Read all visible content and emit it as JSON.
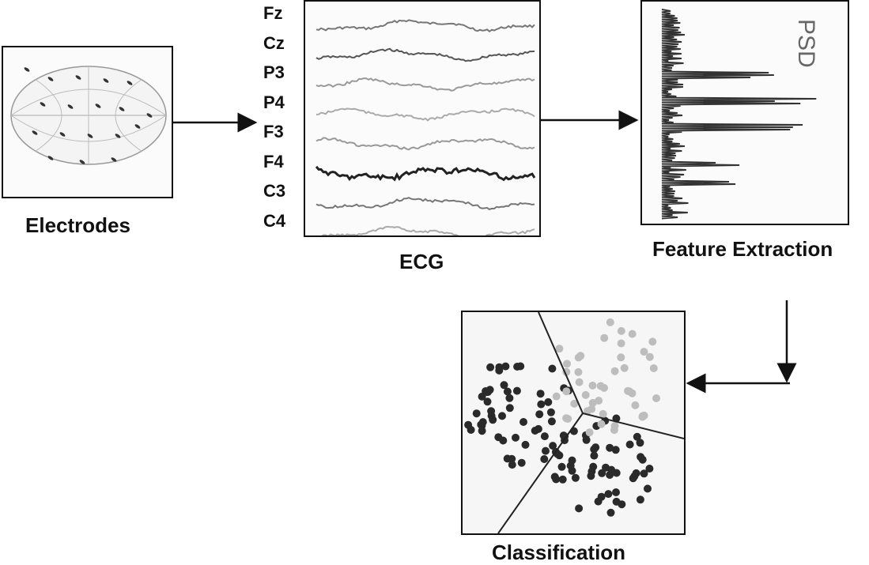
{
  "stages": {
    "electrodes": "Electrodes",
    "ecg": "ECG",
    "feature_extraction": "Feature Extraction",
    "classification": "Classification"
  },
  "channels": [
    "Fz",
    "Cz",
    "P3",
    "P4",
    "F3",
    "F4",
    "C3",
    "C4"
  ],
  "psd_label": "PSD",
  "colors": {
    "ink": "#111111",
    "trace": "#555555",
    "class_a": "#2a2a2a",
    "class_b": "#bdbdbd"
  }
}
